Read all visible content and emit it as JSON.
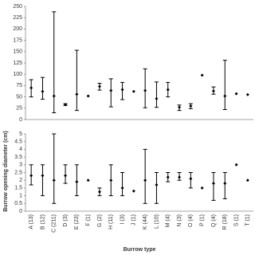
{
  "chart_data": [
    {
      "type": "errorbar",
      "values": [
        70,
        62,
        52,
        33,
        56,
        52,
        73,
        64,
        66,
        62,
        64,
        46,
        66,
        27,
        30,
        98,
        63,
        52,
        57,
        55
      ],
      "lower": [
        50,
        45,
        15,
        31,
        20,
        null,
        65,
        28,
        44,
        null,
        26,
        27,
        50,
        20,
        24,
        null,
        56,
        22,
        null,
        null
      ],
      "upper": [
        88,
        93,
        238,
        35,
        153,
        null,
        80,
        90,
        82,
        null,
        112,
        83,
        82,
        32,
        35,
        null,
        72,
        131,
        null,
        null
      ],
      "ylim": [
        0,
        250
      ],
      "yticks": [
        0,
        25,
        50,
        75,
        100,
        125,
        150,
        175,
        200,
        225,
        250
      ],
      "color": "#000000"
    },
    {
      "type": "errorbar",
      "xlabel": "Burrow type",
      "ylabel": "Burrow opening diameter (cm)",
      "categories": [
        "A (13)",
        "B (12)",
        "C (211)",
        "D (3)",
        "E (23)",
        "F (1)",
        "G (2)",
        "H (11)",
        "I (3)",
        "J (1)",
        "K (44)",
        "L (10)",
        "M (4)",
        "N (3)",
        "O (4)",
        "P (1)",
        "Q (4)",
        "R (18)",
        "S (1)",
        "T (1)"
      ],
      "values": [
        2.3,
        2.3,
        2.0,
        2.3,
        1.9,
        2.0,
        1.25,
        2.0,
        1.5,
        1.3,
        2.0,
        1.7,
        2.2,
        2.2,
        2.1,
        1.5,
        1.8,
        1.8,
        3.0,
        2.0
      ],
      "lower": [
        1.7,
        1.0,
        0.5,
        1.8,
        1.0,
        null,
        1.0,
        1.0,
        1.0,
        null,
        0.5,
        0.5,
        1.9,
        2.0,
        1.5,
        null,
        0.7,
        0.8,
        null,
        null
      ],
      "upper": [
        3.0,
        3.0,
        5.0,
        3.0,
        3.0,
        null,
        1.5,
        3.0,
        2.5,
        null,
        4.0,
        2.5,
        2.5,
        2.5,
        2.5,
        null,
        2.5,
        2.5,
        null,
        null
      ],
      "ylim": [
        0,
        5
      ],
      "yticks": [
        0,
        0.5,
        1,
        1.5,
        2,
        2.5,
        3,
        3.5,
        4,
        4.5,
        5
      ],
      "color": "#000000"
    }
  ]
}
